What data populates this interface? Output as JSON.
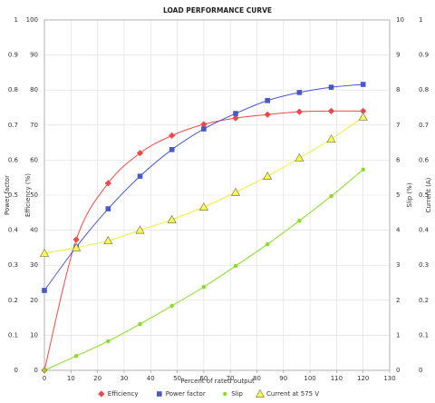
{
  "chart_data": {
    "type": "line",
    "title": "LOAD PERFORMANCE CURVE",
    "xlabel": "Percent of rated output",
    "x": [
      0,
      12,
      24,
      36,
      48,
      60,
      72,
      84,
      96,
      108,
      120
    ],
    "xlim": [
      0,
      130
    ],
    "xticks": [
      0,
      10,
      20,
      30,
      40,
      50,
      60,
      70,
      80,
      90,
      100,
      110,
      120,
      130
    ],
    "ylabel": "Efficiency (%)",
    "ylim": [
      0,
      100
    ],
    "yticks": [
      0,
      10,
      20,
      30,
      40,
      50,
      60,
      70,
      80,
      90,
      100
    ],
    "y2label": "Power factor",
    "y2lim": [
      0,
      1
    ],
    "y2ticks": [
      0,
      0.1,
      0.2,
      0.3,
      0.4,
      0.5,
      0.6,
      0.7,
      0.8,
      0.9,
      1
    ],
    "y3label": "Slip (%)",
    "y3lim": [
      0,
      10
    ],
    "y3ticks": [
      0,
      1,
      2,
      3,
      4,
      5,
      6,
      7,
      8,
      9,
      10
    ],
    "y4label": "Current (A)",
    "y4lim": [
      0,
      1
    ],
    "y4ticks": [
      0,
      0.1,
      0.2,
      0.3,
      0.4,
      0.5,
      0.6,
      0.7,
      0.8,
      0.9,
      1
    ],
    "grid": true,
    "legend": "bottom",
    "series": [
      {
        "name": "Efficiency",
        "color": "#f04848",
        "marker": "diamond",
        "axis": "y",
        "values": [
          0,
          37.3,
          53.4,
          62,
          67,
          70.2,
          72,
          73,
          73.8,
          74,
          74
        ]
      },
      {
        "name": "Power factor",
        "color": "#4858c8",
        "marker": "square",
        "axis": "y2",
        "values": [
          0.228,
          0.352,
          0.461,
          0.554,
          0.63,
          0.689,
          0.733,
          0.77,
          0.793,
          0.808,
          0.816
        ]
      },
      {
        "name": "Slip",
        "color": "#88dd22",
        "marker": "circle",
        "axis": "y3",
        "values": [
          0,
          0.41,
          0.83,
          1.32,
          1.84,
          2.38,
          2.98,
          3.6,
          4.27,
          4.97,
          5.73
        ]
      },
      {
        "name": "Current at 575 V",
        "color": "#ffff44",
        "marker": "triangle",
        "axis": "y4",
        "values": [
          0.334,
          0.35,
          0.37,
          0.4,
          0.43,
          0.466,
          0.508,
          0.554,
          0.606,
          0.66,
          0.723
        ]
      }
    ]
  }
}
